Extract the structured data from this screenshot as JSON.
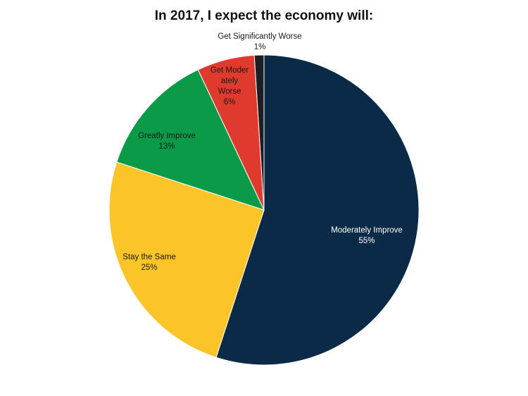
{
  "chart_data": {
    "type": "pie",
    "title": "In 2017, I expect the economy will:",
    "slices": [
      {
        "label": "Moderately Improve",
        "label_lines": [
          "Moderately Improve"
        ],
        "value": 55,
        "value_label": "55%",
        "color": "#0b2a47",
        "label_color": "#ffffff"
      },
      {
        "label": "Stay the Same",
        "label_lines": [
          "Stay the Same"
        ],
        "value": 25,
        "value_label": "25%",
        "color": "#fbc52a",
        "label_color": "#1a1a1a"
      },
      {
        "label": "Greatly Improve",
        "label_lines": [
          "Greatly Improve"
        ],
        "value": 13,
        "value_label": "13%",
        "color": "#0a9a48",
        "label_color": "#1a1a1a"
      },
      {
        "label": "Get Moderately Worse",
        "label_lines": [
          "Get Moder",
          "ately",
          "Worse"
        ],
        "value": 6,
        "value_label": "6%",
        "color": "#e03a2f",
        "label_color": "#1a1a1a"
      },
      {
        "label": "Get Significantly Worse",
        "label_lines": [
          "Get Significantly Worse"
        ],
        "value": 1,
        "value_label": "1%",
        "color": "#1b1f24",
        "label_color": "#1a1a1a"
      }
    ]
  }
}
